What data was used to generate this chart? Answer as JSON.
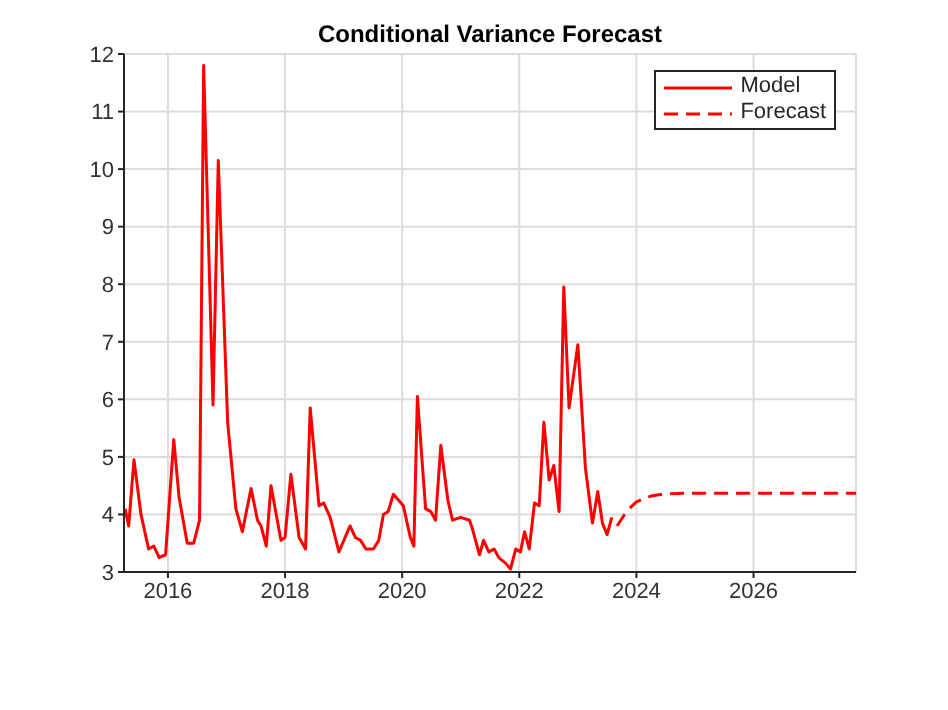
{
  "chart_data": {
    "type": "line",
    "title": "Conditional Variance Forecast",
    "xlim": [
      2015.25,
      2027.75
    ],
    "xticks": [
      2016,
      2018,
      2020,
      2022,
      2024,
      2026
    ],
    "ylim": [
      3,
      12
    ],
    "yticks": [
      3,
      4,
      5,
      6,
      7,
      8,
      9,
      10,
      11,
      12
    ],
    "grid": true,
    "legend": "top right",
    "marker": "none",
    "series": [
      {
        "name": "Model",
        "color": "#ff0000",
        "line_style": "solid",
        "x": [
          2015.27,
          2015.33,
          2015.42,
          2015.54,
          2015.67,
          2015.76,
          2015.85,
          2015.96,
          2016.1,
          2016.19,
          2016.33,
          2016.44,
          2016.54,
          2016.61,
          2016.77,
          2016.86,
          2017.02,
          2017.16,
          2017.27,
          2017.42,
          2017.53,
          2017.59,
          2017.68,
          2017.76,
          2017.93,
          2018.0,
          2018.1,
          2018.24,
          2018.35,
          2018.43,
          2018.58,
          2018.66,
          2018.77,
          2018.92,
          2019.11,
          2019.2,
          2019.29,
          2019.38,
          2019.51,
          2019.6,
          2019.68,
          2019.76,
          2019.85,
          2020.02,
          2020.14,
          2020.2,
          2020.26,
          2020.4,
          2020.49,
          2020.57,
          2020.66,
          2020.78,
          2020.86,
          2021.0,
          2021.15,
          2021.2,
          2021.32,
          2021.39,
          2021.48,
          2021.57,
          2021.65,
          2021.77,
          2021.85,
          2021.94,
          2022.02,
          2022.09,
          2022.17,
          2022.26,
          2022.34,
          2022.42,
          2022.51,
          2022.59,
          2022.68,
          2022.76,
          2022.85,
          2023.0,
          2023.13,
          2023.25,
          2023.34,
          2023.42,
          2023.5,
          2023.58
        ],
        "values": [
          4.1,
          3.8,
          4.95,
          4.0,
          3.4,
          3.45,
          3.25,
          3.3,
          5.3,
          4.3,
          3.5,
          3.5,
          3.9,
          11.8,
          5.9,
          10.15,
          5.6,
          4.1,
          3.7,
          4.45,
          3.9,
          3.8,
          3.45,
          4.5,
          3.55,
          3.6,
          4.7,
          3.6,
          3.4,
          5.85,
          4.15,
          4.2,
          3.95,
          3.35,
          3.8,
          3.6,
          3.55,
          3.4,
          3.4,
          3.55,
          4.0,
          4.05,
          4.35,
          4.15,
          3.6,
          3.45,
          6.05,
          4.1,
          4.05,
          3.9,
          5.2,
          4.25,
          3.9,
          3.95,
          3.9,
          3.75,
          3.3,
          3.55,
          3.35,
          3.4,
          3.25,
          3.15,
          3.05,
          3.4,
          3.35,
          3.7,
          3.4,
          4.2,
          4.15,
          5.6,
          4.6,
          4.85,
          4.05,
          7.95,
          5.85,
          6.95,
          4.8,
          3.85,
          4.4,
          3.85,
          3.65,
          3.95
        ]
      },
      {
        "name": "Forecast",
        "color": "#ff0000",
        "line_style": "dashed",
        "x": [
          2023.67,
          2023.83,
          2024.0,
          2024.25,
          2024.5,
          2025.0,
          2026.0,
          2027.75
        ],
        "values": [
          3.8,
          4.05,
          4.22,
          4.32,
          4.36,
          4.37,
          4.37,
          4.37
        ]
      }
    ]
  }
}
